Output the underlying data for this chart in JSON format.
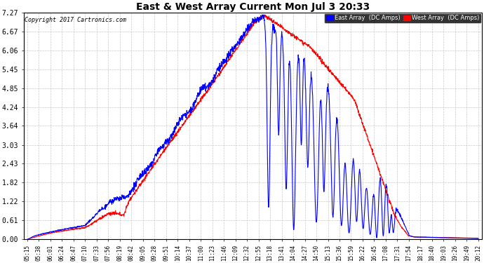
{
  "title": "East & West Array Current Mon Jul 3 20:33",
  "copyright": "Copyright 2017 Cartronics.com",
  "legend_east": "East Array  (DC Amps)",
  "legend_west": "West Array  (DC Amps)",
  "east_color": "#0000ff",
  "west_color": "#ff0000",
  "background_color": "#ffffff",
  "grid_color": "#bbbbbb",
  "yticks": [
    0.0,
    0.61,
    1.22,
    1.82,
    2.43,
    3.03,
    3.64,
    4.24,
    4.85,
    5.45,
    6.06,
    6.67,
    7.27
  ],
  "ylim": [
    0.0,
    7.27
  ],
  "xtick_labels": [
    "05:15",
    "05:38",
    "06:01",
    "06:24",
    "06:47",
    "07:10",
    "07:33",
    "07:56",
    "08:19",
    "08:42",
    "09:05",
    "09:28",
    "09:51",
    "10:14",
    "10:37",
    "11:00",
    "11:23",
    "11:46",
    "12:09",
    "12:32",
    "12:55",
    "13:18",
    "13:41",
    "14:04",
    "14:27",
    "14:50",
    "15:13",
    "15:36",
    "15:59",
    "16:22",
    "16:45",
    "17:08",
    "17:31",
    "17:54",
    "18:17",
    "18:40",
    "19:03",
    "19:26",
    "19:49",
    "20:12"
  ]
}
